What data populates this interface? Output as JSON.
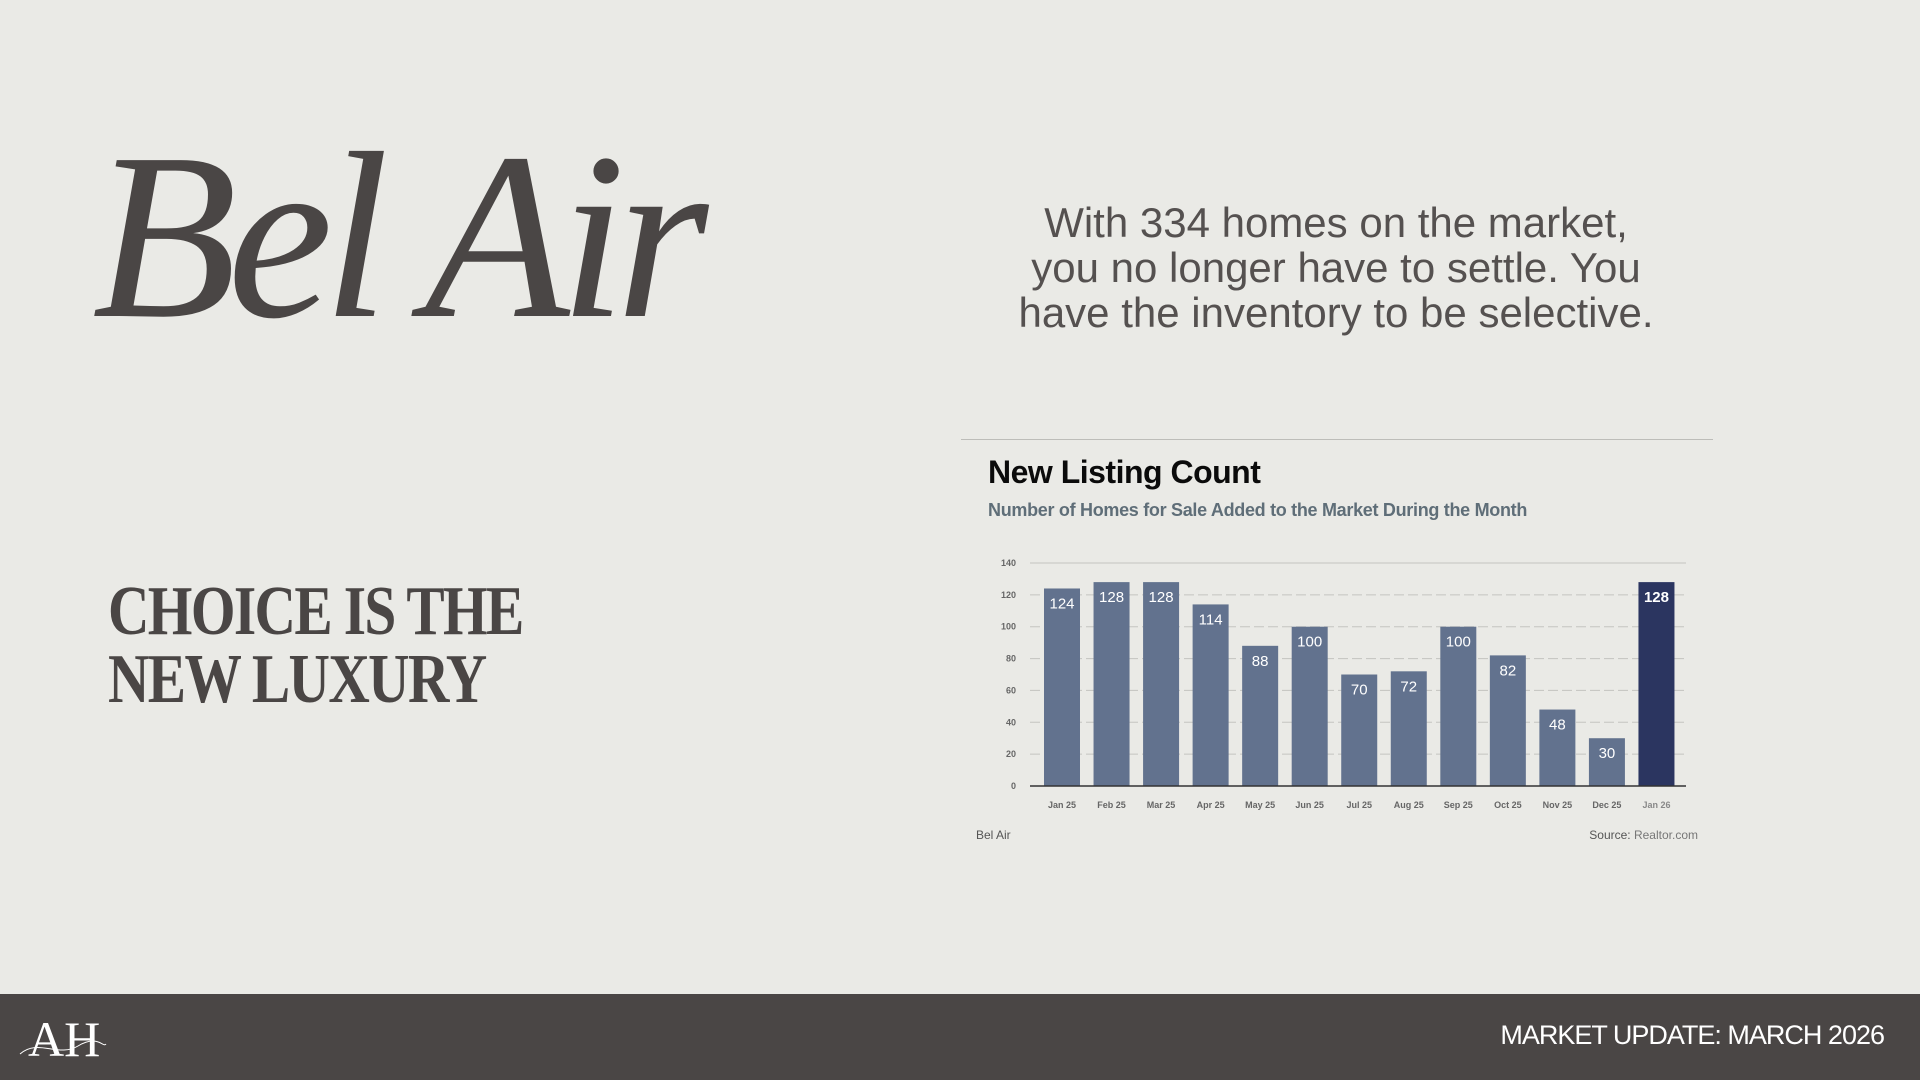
{
  "headline": "Bel Air",
  "tagline": [
    "CHOICE IS THE",
    "NEW LUXURY"
  ],
  "intro": [
    "With 334 homes on the market,",
    "you no longer have to settle. You",
    "have the inventory to be selective."
  ],
  "footer": {
    "logo_text": "AH",
    "label": "MARKET UPDATE: MARCH 2026"
  },
  "chart_data": {
    "type": "bar",
    "title": "New Listing Count",
    "subtitle": "Number of Homes for Sale Added to the Market During the Month",
    "categories": [
      "Jan 25",
      "Feb 25",
      "Mar 25",
      "Apr 25",
      "May 25",
      "Jun 25",
      "Jul 25",
      "Aug 25",
      "Sep 25",
      "Oct 25",
      "Nov 25",
      "Dec 25",
      "Jan 26"
    ],
    "values": [
      124,
      128,
      128,
      114,
      88,
      100,
      70,
      72,
      100,
      82,
      48,
      30,
      128
    ],
    "ylim": [
      0,
      140
    ],
    "yticks": [
      0,
      20,
      40,
      60,
      80,
      100,
      120,
      140
    ],
    "grid": true,
    "colors": {
      "bar": "#62728e",
      "highlight": "#2b3560"
    },
    "highlight_index": 12,
    "footer_left": "Bel Air",
    "source_label": "Source:",
    "source_value": "Realtor.com"
  }
}
